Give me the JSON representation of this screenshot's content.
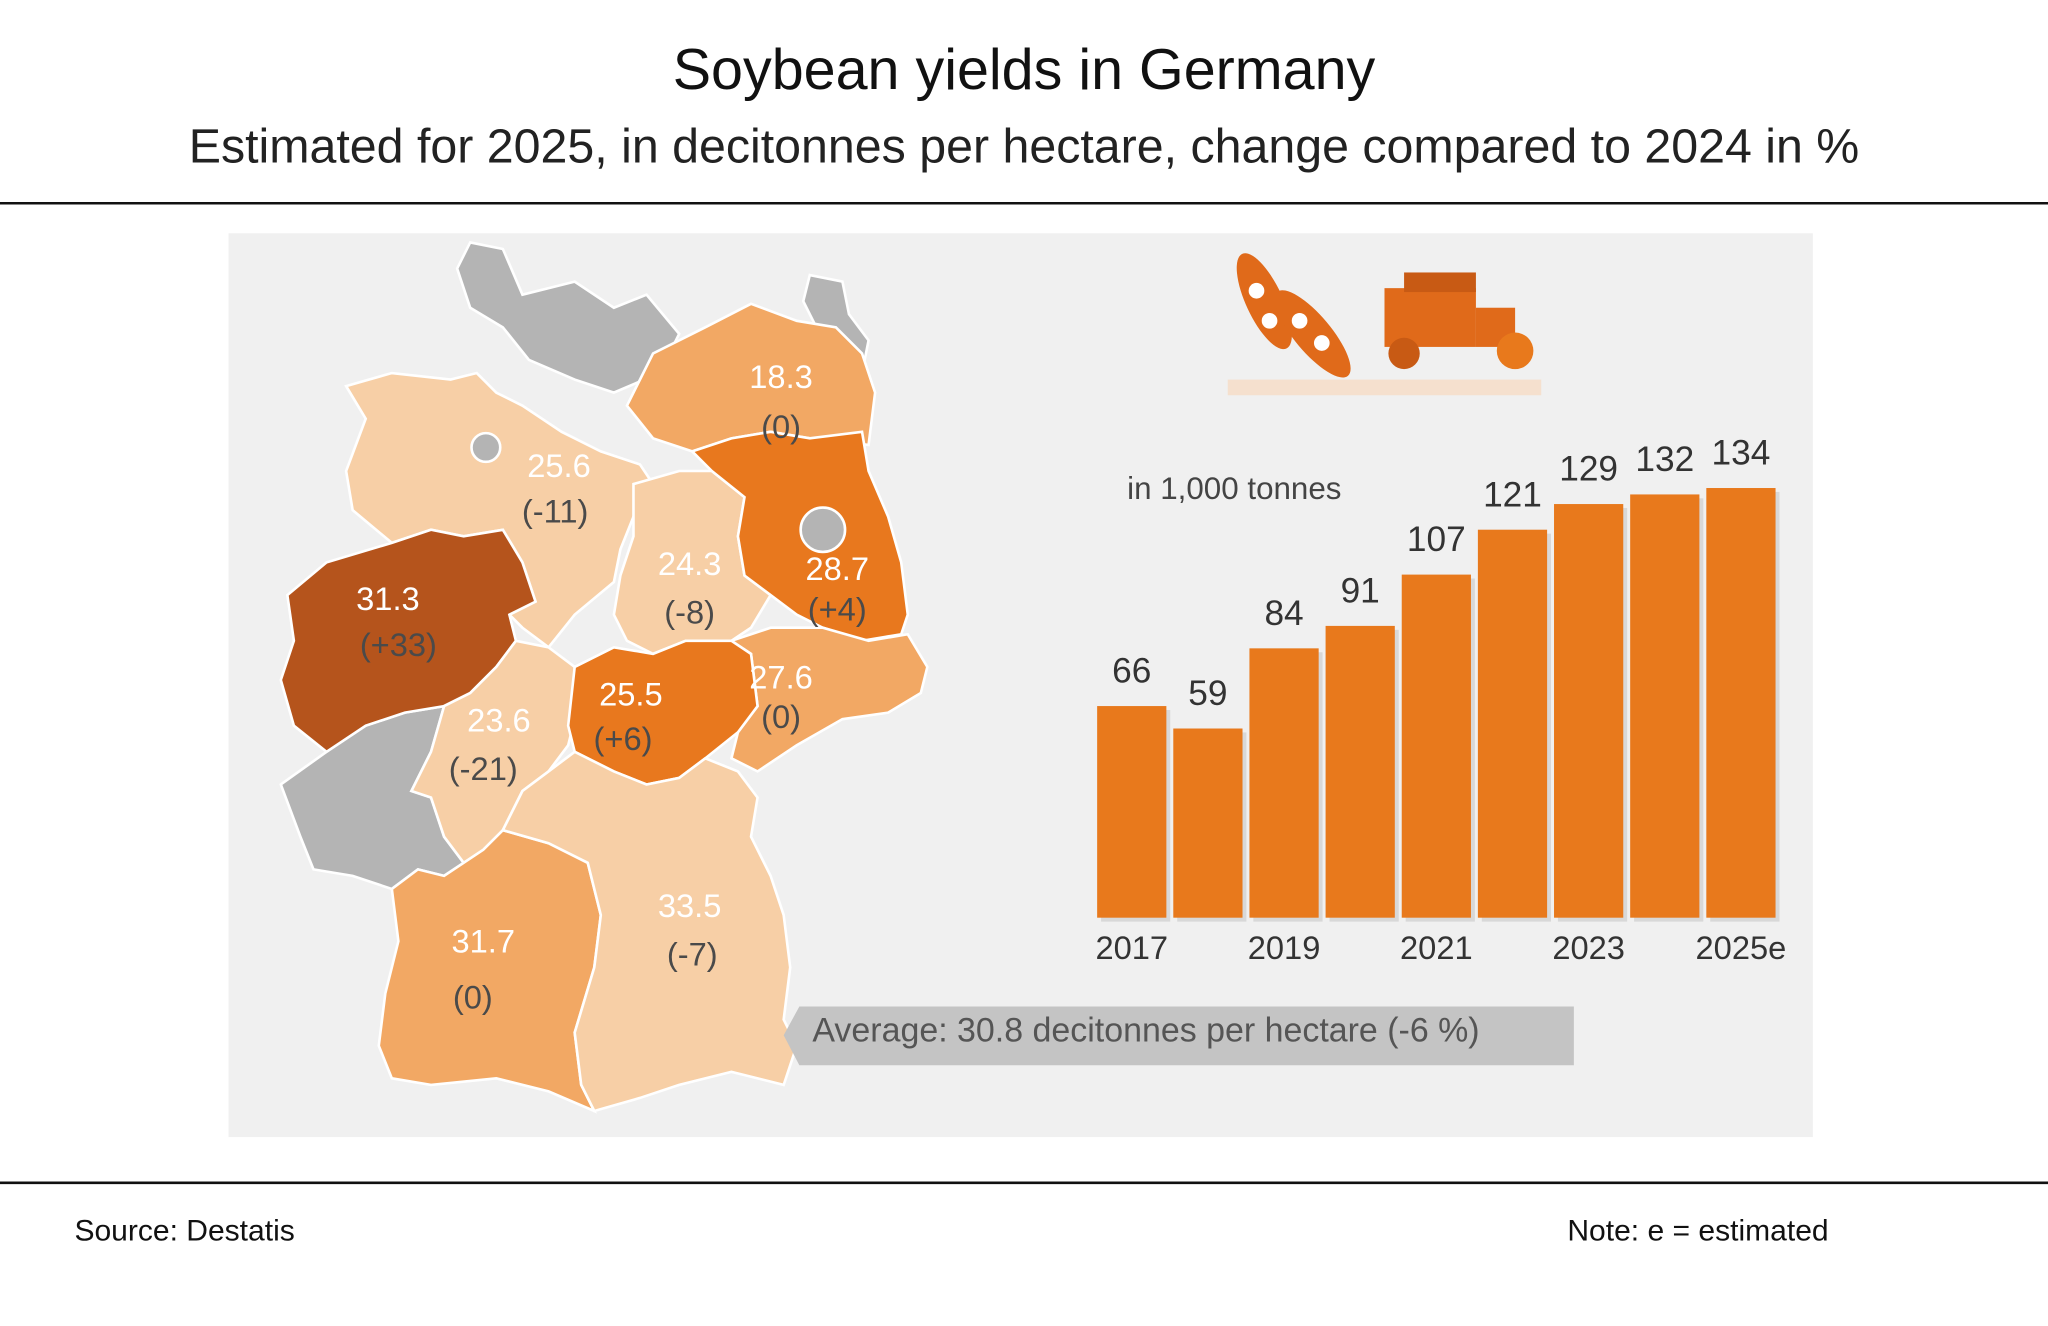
{
  "title": "Soybean yields in Germany",
  "subtitle": "Estimated for 2025, in decitonnes per hectare, change compared to 2024 in %",
  "source": "Source: Destatis",
  "note": "Note:  e = estimated",
  "chart_data": [
    {
      "type": "choropleth",
      "values": [
        18.3,
        25.6,
        24.3,
        28.7,
        31.3,
        27.6,
        23.6,
        25.5,
        31.7,
        33.5
      ],
      "changes": [
        "(0)",
        "(-11)",
        "(-8)",
        "(+4)",
        "(+33)",
        "(0)",
        "(-21)",
        "(+6)",
        "(0)",
        "(-7)"
      ],
      "colors": [
        "#f2a864",
        "#f7cfa6",
        "#f7cfa6",
        "#e8781e",
        "#b5541c",
        "#f2a864",
        "#f7cfa6",
        "#e8781e",
        "#f2a864",
        "#f7cfa6"
      ],
      "annotation": "Average: 30.8 decitonnes per hectare (-6 %)"
    },
    {
      "type": "bar",
      "annotation": "in 1,000 tonnes",
      "categories": [
        "2017",
        null,
        "2019",
        null,
        "2021",
        null,
        "2023",
        null,
        "2025e"
      ],
      "values": [
        66,
        59,
        84,
        91,
        107,
        121,
        129,
        132,
        134
      ],
      "color": "#e8791c"
    }
  ]
}
